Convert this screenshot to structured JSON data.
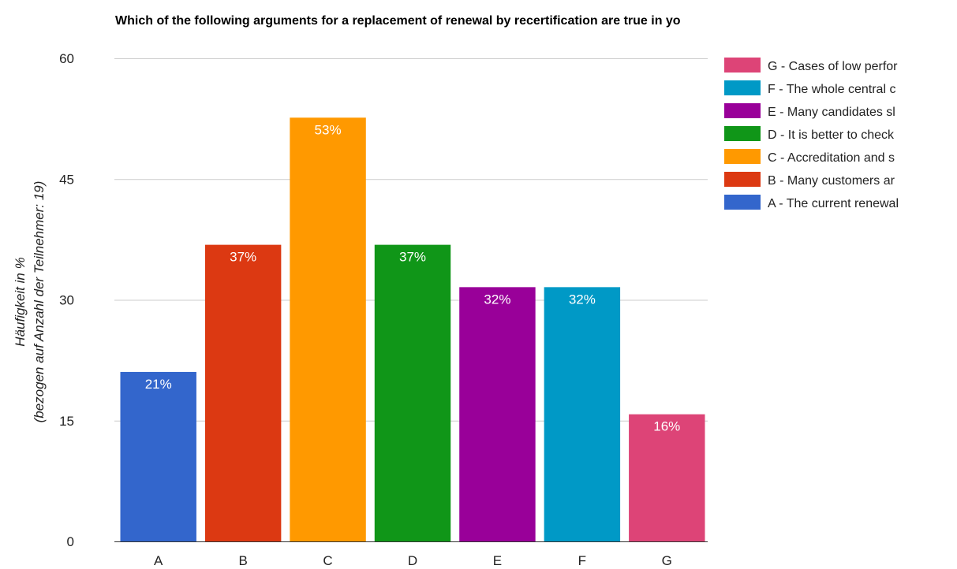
{
  "chart_data": {
    "type": "bar",
    "title": "Which of the following arguments for a replacement of renewal by recertification are true in yo",
    "ylabel_lines": [
      "Häufigkeit in %",
      "(bezogen auf Anzahl der Teilnehmer: 19)"
    ],
    "xlabel": "",
    "ylim": [
      0,
      60
    ],
    "yticks": [
      0,
      15,
      30,
      45,
      60
    ],
    "grid": true,
    "legend_position": "right",
    "series": [
      {
        "category": "A",
        "value": 21.05,
        "label": "21%",
        "color": "#3366cc",
        "legend": "A - The current renewal"
      },
      {
        "category": "B",
        "value": 36.84,
        "label": "37%",
        "color": "#dc3912",
        "legend": "B - Many customers ar"
      },
      {
        "category": "C",
        "value": 52.63,
        "label": "53%",
        "color": "#ff9900",
        "legend": "C - Accreditation and s"
      },
      {
        "category": "D",
        "value": 36.84,
        "label": "37%",
        "color": "#109618",
        "legend": "D - It is better to check"
      },
      {
        "category": "E",
        "value": 31.58,
        "label": "32%",
        "color": "#990099",
        "legend": "E - Many candidates sl"
      },
      {
        "category": "F",
        "value": 31.58,
        "label": "32%",
        "color": "#0099c6",
        "legend": "F - The whole central c"
      },
      {
        "category": "G",
        "value": 15.79,
        "label": "16%",
        "color": "#dd4477",
        "legend": "G - Cases of low perfor"
      }
    ]
  }
}
